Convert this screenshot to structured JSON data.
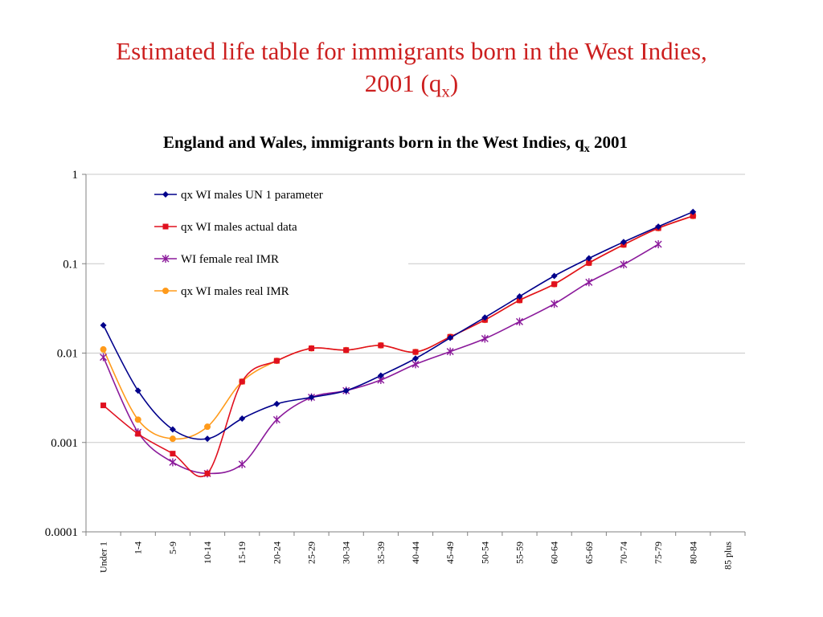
{
  "slide": {
    "title_main": "Estimated life table for immigrants born in the West Indies,",
    "title_line2": "2001 (q",
    "title_sub": "x",
    "title_end": ")"
  },
  "chart_data": {
    "type": "line",
    "title": "England and Wales, immigrants born in the West Indies, q",
    "title_sub": "x",
    "title_end": " 2001",
    "xlabel": "",
    "ylabel": "",
    "y_scale": "log",
    "ylim": [
      0.0001,
      1
    ],
    "y_ticks": [
      1,
      0.1,
      0.01,
      0.001,
      0.0001
    ],
    "y_tick_labels": [
      "1",
      "0.1",
      "0.01",
      "0.001",
      "0.0001"
    ],
    "grid": true,
    "legend_position": "upper-left",
    "categories": [
      "Under 1",
      "1-4",
      "5-9",
      "10-14",
      "15-19",
      "20-24",
      "25-29",
      "30-34",
      "35-39",
      "40-44",
      "45-49",
      "50-54",
      "55-59",
      "60-64",
      "65-69",
      "70-74",
      "75-79",
      "80-84",
      "85 plus"
    ],
    "series": [
      {
        "name": "qx WI males UN 1 parameter",
        "color": "#00008b",
        "marker": "diamond",
        "values": [
          0.0205,
          0.0038,
          0.0014,
          0.0011,
          0.00185,
          0.0027,
          0.0032,
          0.0038,
          0.0056,
          0.0087,
          0.0148,
          0.025,
          0.043,
          0.073,
          0.115,
          0.175,
          0.26,
          0.38,
          null
        ]
      },
      {
        "name": "qx WI males actual data",
        "color": "#e0101f",
        "marker": "square",
        "values": [
          0.0026,
          0.00125,
          0.00075,
          0.00045,
          0.0048,
          0.0082,
          0.0113,
          0.0108,
          0.0122,
          0.0103,
          0.0152,
          0.0235,
          0.039,
          0.059,
          0.102,
          0.163,
          0.25,
          0.342,
          null
        ]
      },
      {
        "name": "WI female  real IMR",
        "color": "#8b1a9b",
        "marker": "star",
        "values": [
          0.009,
          0.0013,
          0.0006,
          0.00045,
          0.00057,
          0.0018,
          0.0032,
          0.0038,
          0.005,
          0.0075,
          0.0104,
          0.0145,
          0.0225,
          0.0355,
          0.062,
          0.098,
          0.165,
          null,
          null
        ]
      },
      {
        "name": "qx WI males real IMR",
        "color": "#ff9a1a",
        "marker": "circle",
        "values": [
          0.011,
          0.0018,
          0.0011,
          0.0015,
          0.0048,
          0.0082,
          0.0113,
          0.0108,
          0.0122,
          0.0103,
          0.0152,
          0.0235,
          0.039,
          0.059,
          0.102,
          0.163,
          0.25,
          0.342,
          null
        ]
      }
    ]
  }
}
